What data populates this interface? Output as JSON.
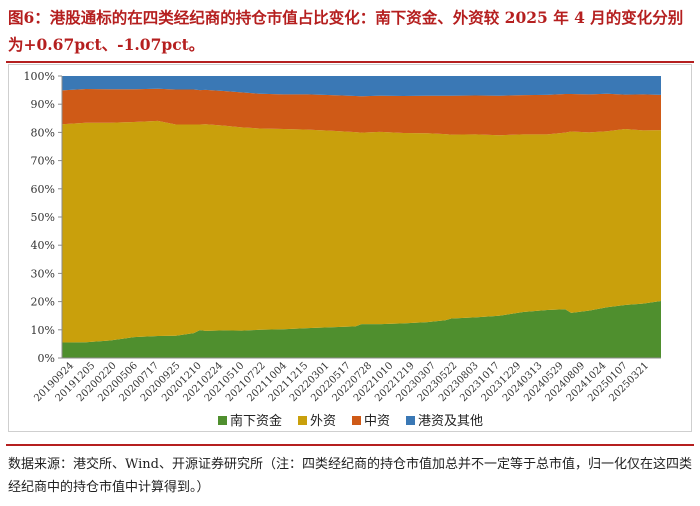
{
  "title": "图6：港股通标的在四类经纪商的持仓市值占比变化：南下资金、外资较 2025 年 4 月的变化分别为+0.67pct、-1.07pct。",
  "source": "数据来源：港交所、Wind、开源证券研究所（注：四类经纪商的持仓市值加总并不一定等于总市值，归一化仅在这四类经纪商中的持仓市值中计算得到。）",
  "chart_data": {
    "type": "area",
    "stacked": true,
    "ylim": [
      0,
      100
    ],
    "yticks": [
      "0%",
      "10%",
      "20%",
      "30%",
      "40%",
      "50%",
      "60%",
      "70%",
      "80%",
      "90%",
      "100%"
    ],
    "xticks": [
      "20190924",
      "20191205",
      "20200220",
      "20200506",
      "20200717",
      "20200925",
      "20201210",
      "20210224",
      "20210510",
      "20210722",
      "20211004",
      "20211215",
      "20220301",
      "20220517",
      "20220728",
      "20221010",
      "20221219",
      "20230307",
      "20230522",
      "20230803",
      "20231017",
      "20231229",
      "20240313",
      "20240529",
      "20240809",
      "20241024",
      "20250107",
      "20250321"
    ],
    "legend_position": "bottom",
    "grid": false,
    "colors": {
      "south": "#4f8f2e",
      "foreign": "#c9a00c",
      "chinese": "#cf5a17",
      "hk_other": "#3a78b5"
    },
    "x_positions": [
      0,
      0.04,
      0.08,
      0.12,
      0.16,
      0.19,
      0.22,
      0.23,
      0.24,
      0.27,
      0.3,
      0.33,
      0.37,
      0.41,
      0.45,
      0.49,
      0.5,
      0.53,
      0.57,
      0.61,
      0.64,
      0.65,
      0.69,
      0.73,
      0.77,
      0.81,
      0.84,
      0.85,
      0.88,
      0.91,
      0.94,
      0.97,
      1.0
    ],
    "series": [
      {
        "name": "南下资金",
        "key": "south",
        "values": [
          5.5,
          5.6,
          6.2,
          7.4,
          7.8,
          7.9,
          8.8,
          9.9,
          9.6,
          9.8,
          9.7,
          10.0,
          10.2,
          10.6,
          10.9,
          11.2,
          12.0,
          12.0,
          12.3,
          12.7,
          13.4,
          14.0,
          14.4,
          15.0,
          16.3,
          17.0,
          17.3,
          16.0,
          16.8,
          18.0,
          18.8,
          19.3,
          20.2
        ]
      },
      {
        "name": "外资",
        "key": "foreign",
        "values": [
          77.4,
          77.8,
          77.2,
          76.3,
          76.3,
          74.9,
          74.0,
          72.9,
          73.3,
          72.6,
          72.1,
          71.4,
          71.0,
          70.4,
          69.7,
          68.9,
          67.9,
          68.2,
          67.5,
          67.0,
          66.0,
          65.2,
          64.9,
          64.0,
          63.0,
          62.3,
          62.6,
          64.3,
          63.2,
          62.4,
          62.4,
          61.4,
          60.6
        ]
      },
      {
        "name": "中资",
        "key": "chinese",
        "values": [
          12.0,
          12.0,
          11.9,
          11.6,
          11.4,
          12.4,
          12.4,
          12.2,
          12.2,
          12.3,
          12.4,
          12.3,
          12.3,
          12.5,
          12.6,
          12.8,
          12.9,
          12.8,
          13.1,
          13.3,
          13.6,
          13.8,
          13.8,
          14.0,
          13.9,
          14.0,
          13.7,
          13.3,
          13.5,
          13.3,
          12.2,
          12.8,
          12.5
        ]
      },
      {
        "name": "港资及其他",
        "key": "hk_other",
        "values": [
          5.1,
          4.6,
          4.7,
          4.7,
          4.5,
          4.8,
          4.8,
          5.0,
          4.9,
          5.3,
          5.8,
          6.3,
          6.5,
          6.5,
          6.8,
          7.1,
          7.2,
          7.0,
          7.1,
          7.0,
          7.0,
          7.0,
          6.9,
          7.0,
          6.8,
          6.7,
          6.4,
          6.4,
          6.5,
          6.3,
          6.6,
          6.5,
          6.7
        ]
      }
    ]
  }
}
